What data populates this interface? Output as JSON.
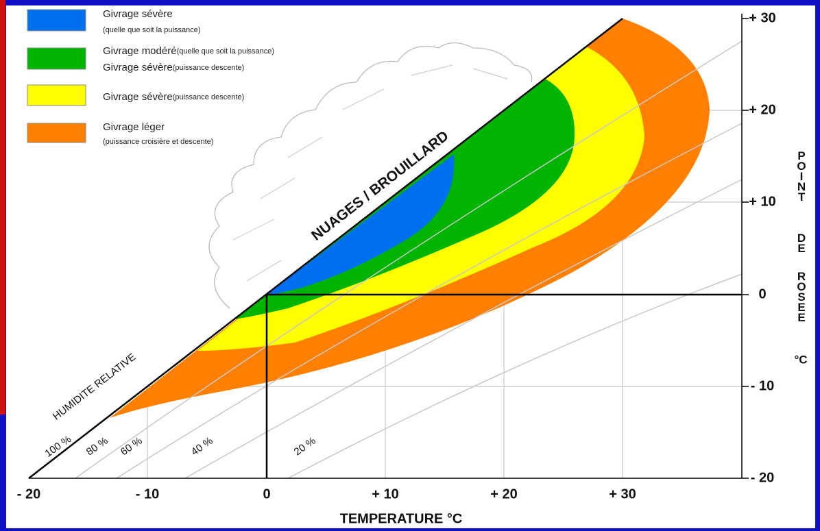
{
  "legend": [
    {
      "lines": [
        {
          "title": "Givrage sévère"
        },
        {
          "title": "(quelle que soit la puissance)"
        }
      ]
    },
    {
      "lines": [
        {
          "title": "Givrage modéré",
          "note": "(quelle que soit la puissance)"
        },
        {
          "title": "Givrage sévère",
          "note": "(puissance descente)"
        }
      ]
    },
    {
      "lines": [
        {
          "title": "Givrage sévère",
          "note": "(puissance descente)"
        }
      ]
    },
    {
      "lines": [
        {
          "title": "Givrage léger"
        },
        {
          "title": "(puissance croisière et descente)"
        }
      ]
    }
  ],
  "x_axis": {
    "title": "TEMPERATURE °C",
    "ticks": [
      "- 20",
      "- 10",
      "0",
      "+ 10",
      "+ 20",
      "+ 30"
    ]
  },
  "y_axis": {
    "title_words": [
      "POINT",
      "DE",
      "ROSEE"
    ],
    "unit": "°C",
    "ticks": [
      "+ 30",
      "+ 20",
      "+ 10",
      "0",
      "- 10",
      "- 20"
    ]
  },
  "region_label": "NUAGES / BROUILLARD",
  "humidity": {
    "title": "HUMIDITE RELATIVE",
    "labels": [
      "100 %",
      "80 %",
      "60 %",
      "40 %",
      "20 %"
    ]
  }
}
